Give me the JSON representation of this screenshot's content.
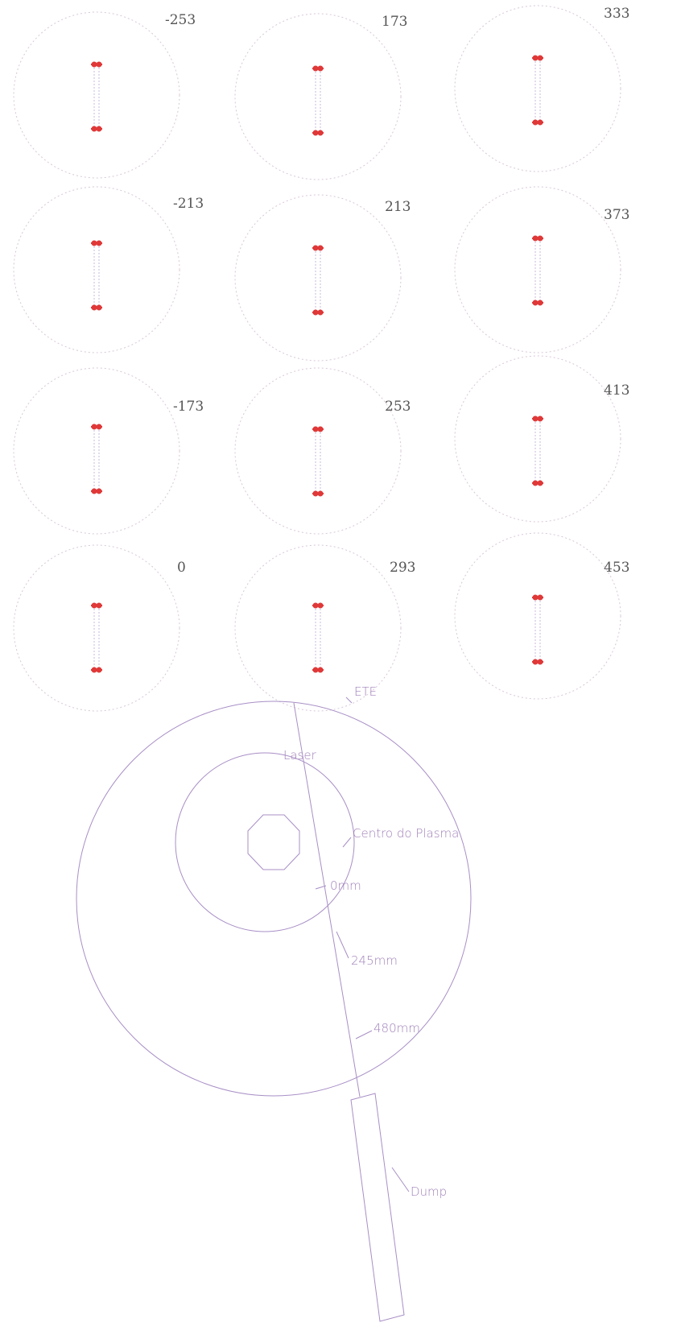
{
  "panels": [
    {
      "label": "-253"
    },
    {
      "label": "173"
    },
    {
      "label": "333"
    },
    {
      "label": "-213"
    },
    {
      "label": "213"
    },
    {
      "label": "373"
    },
    {
      "label": "-173"
    },
    {
      "label": "253"
    },
    {
      "label": "413"
    },
    {
      "label": "0"
    },
    {
      "label": "293"
    },
    {
      "label": "453"
    }
  ],
  "diagram": {
    "ete": "ETE",
    "laser": "Laser",
    "plasma_center": "Centro do Plasma",
    "r0": "0mm",
    "r245": "245mm",
    "r480": "480mm",
    "dump": "Dump"
  }
}
